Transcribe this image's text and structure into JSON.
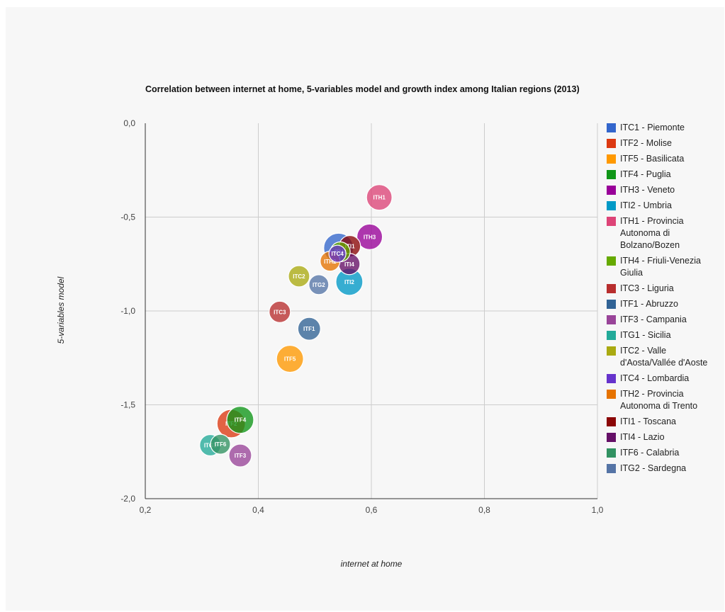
{
  "chart_data": {
    "type": "scatter",
    "title": "Correlation between internet at home, 5-variables model and growth index among Italian regions (2013)",
    "xlabel": "internet at home",
    "ylabel": "5-variables model",
    "xlim": [
      0.2,
      1.0
    ],
    "ylim": [
      -2.0,
      0.0
    ],
    "x_ticks": [
      0.2,
      0.4,
      0.6,
      0.8,
      1.0
    ],
    "y_ticks": [
      0.0,
      -0.5,
      -1.0,
      -1.5,
      -2.0
    ],
    "x_tick_labels": [
      "0,2",
      "0,4",
      "0,6",
      "0,8",
      "1,0"
    ],
    "y_tick_labels": [
      "0,0",
      "-0,5",
      "-1,0",
      "-1,5",
      "-2,0"
    ],
    "grid": true,
    "legend_position": "right",
    "series": [
      {
        "name": "ITC1 - Piemonte",
        "label": "ITC1",
        "x": 0.542,
        "y": -0.665,
        "size": 21,
        "color": "#3366cc"
      },
      {
        "name": "ITF2 - Molise",
        "label": "ITF2",
        "x": 0.352,
        "y": -1.6,
        "size": 20,
        "color": "#dc3912"
      },
      {
        "name": "ITF5 - Basilicata",
        "label": "ITF5",
        "x": 0.456,
        "y": -1.255,
        "size": 19,
        "color": "#ff9900"
      },
      {
        "name": "ITF4 - Puglia",
        "label": "ITF4",
        "x": 0.368,
        "y": -1.58,
        "size": 19,
        "color": "#109618"
      },
      {
        "name": "ITH3 - Veneto",
        "label": "ITH3",
        "x": 0.597,
        "y": -0.605,
        "size": 18,
        "color": "#990099"
      },
      {
        "name": "ITI2 - Umbria",
        "label": "ITI2",
        "x": 0.561,
        "y": -0.845,
        "size": 19,
        "color": "#0099c6"
      },
      {
        "name": "ITH1 - Provincia Autonoma di Bolzano/Bozen",
        "label": "ITH1",
        "x": 0.614,
        "y": -0.395,
        "size": 18,
        "color": "#dd4477"
      },
      {
        "name": "ITH4 - Friuli-Venezia Giulia",
        "label": "ITH4",
        "x": 0.545,
        "y": -0.685,
        "size": 14,
        "color": "#66aa00"
      },
      {
        "name": "ITC3 - Liguria",
        "label": "ITC3",
        "x": 0.438,
        "y": -1.005,
        "size": 15,
        "color": "#b82e2e"
      },
      {
        "name": "ITF1 - Abruzzo",
        "label": "ITF1",
        "x": 0.49,
        "y": -1.095,
        "size": 16,
        "color": "#316395"
      },
      {
        "name": "ITF3 - Campania",
        "label": "ITF3",
        "x": 0.368,
        "y": -1.77,
        "size": 16,
        "color": "#994499"
      },
      {
        "name": "ITG1 - Sicilia",
        "label": "ITG1",
        "x": 0.315,
        "y": -1.715,
        "size": 15,
        "color": "#22aa99"
      },
      {
        "name": "ITC2 - Valle d'Aosta/Vallée d'Aoste",
        "label": "ITC2",
        "x": 0.472,
        "y": -0.815,
        "size": 15,
        "color": "#aaaa11"
      },
      {
        "name": "ITC4 - Lombardia",
        "label": "ITC4",
        "x": 0.54,
        "y": -0.695,
        "size": 12,
        "color": "#6633cc"
      },
      {
        "name": "ITH2 - Provincia Autonoma di Trento",
        "label": "ITH2",
        "x": 0.527,
        "y": -0.735,
        "size": 14,
        "color": "#e67300"
      },
      {
        "name": "ITI1 - Toscana",
        "label": "ITI1",
        "x": 0.562,
        "y": -0.655,
        "size": 15,
        "color": "#8b0707"
      },
      {
        "name": "ITI4 - Lazio",
        "label": "ITI4",
        "x": 0.561,
        "y": -0.75,
        "size": 15,
        "color": "#651067"
      },
      {
        "name": "ITF6 - Calabria",
        "label": "ITF6",
        "x": 0.333,
        "y": -1.71,
        "size": 14,
        "color": "#329262"
      },
      {
        "name": "ITG2 - Sardegna",
        "label": "ITG2",
        "x": 0.507,
        "y": -0.86,
        "size": 14,
        "color": "#5574a6"
      }
    ]
  }
}
